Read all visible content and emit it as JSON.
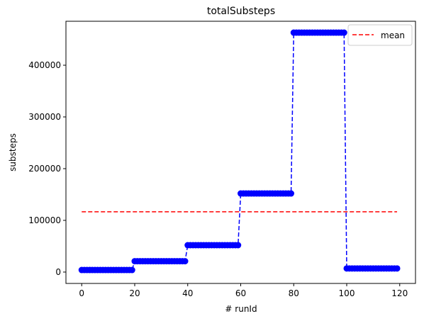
{
  "chart_data": {
    "type": "line",
    "title": "totalSubsteps",
    "xlabel": "# runId",
    "ylabel": "substeps",
    "xlim": [
      -5.95,
      125.95
    ],
    "ylim": [
      -22000,
      485000
    ],
    "xticks": [
      0,
      20,
      40,
      60,
      80,
      100,
      120
    ],
    "yticks": [
      0,
      100000,
      200000,
      300000,
      400000
    ],
    "grid": false,
    "legend_position": "upper right",
    "series": [
      {
        "kind": "step-data",
        "color": "#0000ff",
        "linestyle": "dashed",
        "marker": "circle",
        "segments": [
          {
            "x_start": 0,
            "x_end": 19,
            "y": 4000
          },
          {
            "x_start": 20,
            "x_end": 39,
            "y": 21000
          },
          {
            "x_start": 40,
            "x_end": 59,
            "y": 52000
          },
          {
            "x_start": 60,
            "x_end": 79,
            "y": 152000
          },
          {
            "x_start": 80,
            "x_end": 99,
            "y": 463000
          },
          {
            "x_start": 100,
            "x_end": 119,
            "y": 7000
          }
        ]
      },
      {
        "name": "mean",
        "kind": "mean-line",
        "color": "#ff0000",
        "linestyle": "dashed",
        "x": [
          0,
          119
        ],
        "y": 116500
      }
    ]
  }
}
